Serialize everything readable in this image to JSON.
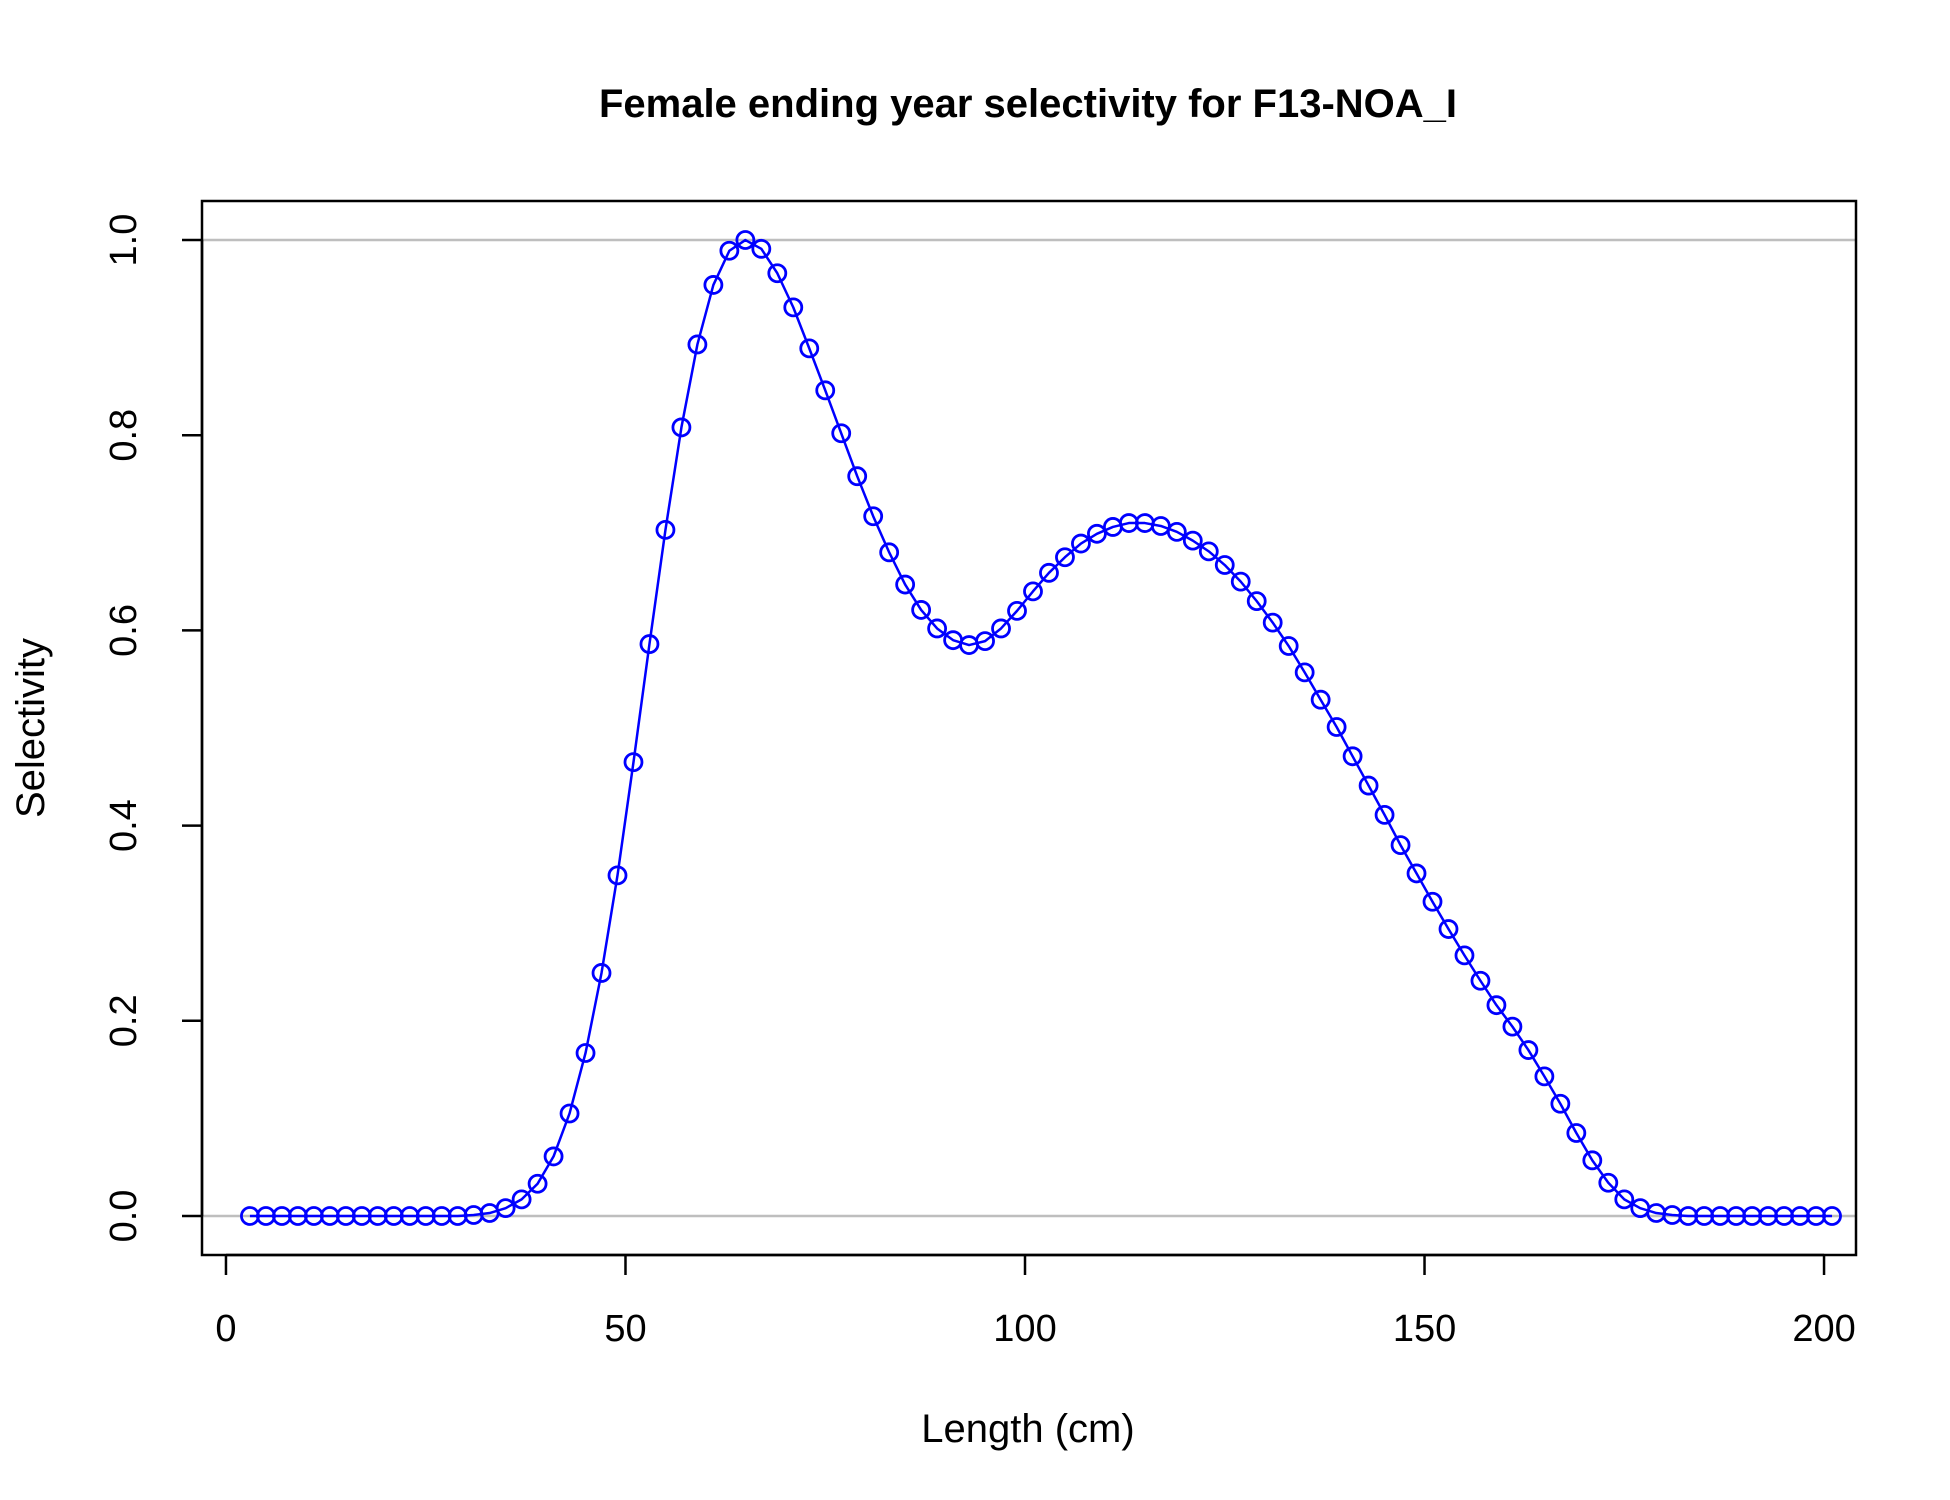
{
  "chart_data": {
    "type": "line",
    "title": "Female ending year selectivity for F13-NOA_I",
    "xlabel": "Length (cm)",
    "ylabel": "Selectivity",
    "xlim": [
      -3,
      204
    ],
    "ylim": [
      -0.04,
      1.04
    ],
    "x_ticks": [
      0,
      50,
      100,
      150,
      200
    ],
    "x_tick_labels": [
      "0",
      "50",
      "100",
      "150",
      "200"
    ],
    "y_ticks": [
      0.0,
      0.2,
      0.4,
      0.6,
      0.8,
      1.0
    ],
    "y_tick_labels": [
      "0.0",
      "0.2",
      "0.4",
      "0.6",
      "0.8",
      "1.0"
    ],
    "reference_lines_y": [
      0.0,
      1.0
    ],
    "reference_line_color": "#bebebe",
    "grid": false,
    "legend": "none",
    "series": [
      {
        "color": "#0000ff",
        "marker": "open-circle",
        "x": [
          3,
          5,
          7,
          9,
          11,
          13,
          15,
          17,
          19,
          21,
          23,
          25,
          27,
          29,
          31,
          33,
          35,
          37,
          39,
          41,
          43,
          45,
          47,
          49,
          51,
          53,
          55,
          57,
          59,
          61,
          63,
          65,
          67,
          69,
          71,
          73,
          75,
          77,
          79,
          81,
          83,
          85,
          87,
          89,
          91,
          93,
          95,
          97,
          99,
          101,
          103,
          105,
          107,
          109,
          111,
          113,
          115,
          117,
          119,
          121,
          123,
          125,
          127,
          129,
          131,
          133,
          135,
          137,
          139,
          141,
          143,
          145,
          147,
          149,
          151,
          153,
          155,
          157,
          159,
          161,
          163,
          165,
          167,
          169,
          171,
          173,
          175,
          177,
          179,
          181,
          183,
          185,
          187,
          189,
          191,
          193,
          195,
          197,
          199,
          201
        ],
        "y": [
          0,
          0,
          0,
          0,
          0,
          0,
          0,
          0,
          0,
          0,
          0,
          0,
          0,
          0,
          0.001,
          0.003,
          0.008,
          0.017,
          0.033,
          0.061,
          0.105,
          0.167,
          0.249,
          0.349,
          0.465,
          0.586,
          0.703,
          0.808,
          0.893,
          0.954,
          0.989,
          1.0,
          0.991,
          0.966,
          0.931,
          0.889,
          0.846,
          0.802,
          0.758,
          0.717,
          0.68,
          0.647,
          0.621,
          0.602,
          0.59,
          0.585,
          0.589,
          0.602,
          0.62,
          0.64,
          0.659,
          0.675,
          0.689,
          0.699,
          0.706,
          0.71,
          0.71,
          0.707,
          0.701,
          0.692,
          0.681,
          0.667,
          0.65,
          0.63,
          0.608,
          0.584,
          0.557,
          0.529,
          0.501,
          0.471,
          0.441,
          0.411,
          0.38,
          0.351,
          0.322,
          0.294,
          0.267,
          0.241,
          0.216,
          0.194,
          0.17,
          0.143,
          0.115,
          0.085,
          0.057,
          0.034,
          0.017,
          0.008,
          0.003,
          0.001,
          0,
          0,
          0,
          0,
          0,
          0,
          0,
          0,
          0,
          0
        ]
      }
    ]
  }
}
